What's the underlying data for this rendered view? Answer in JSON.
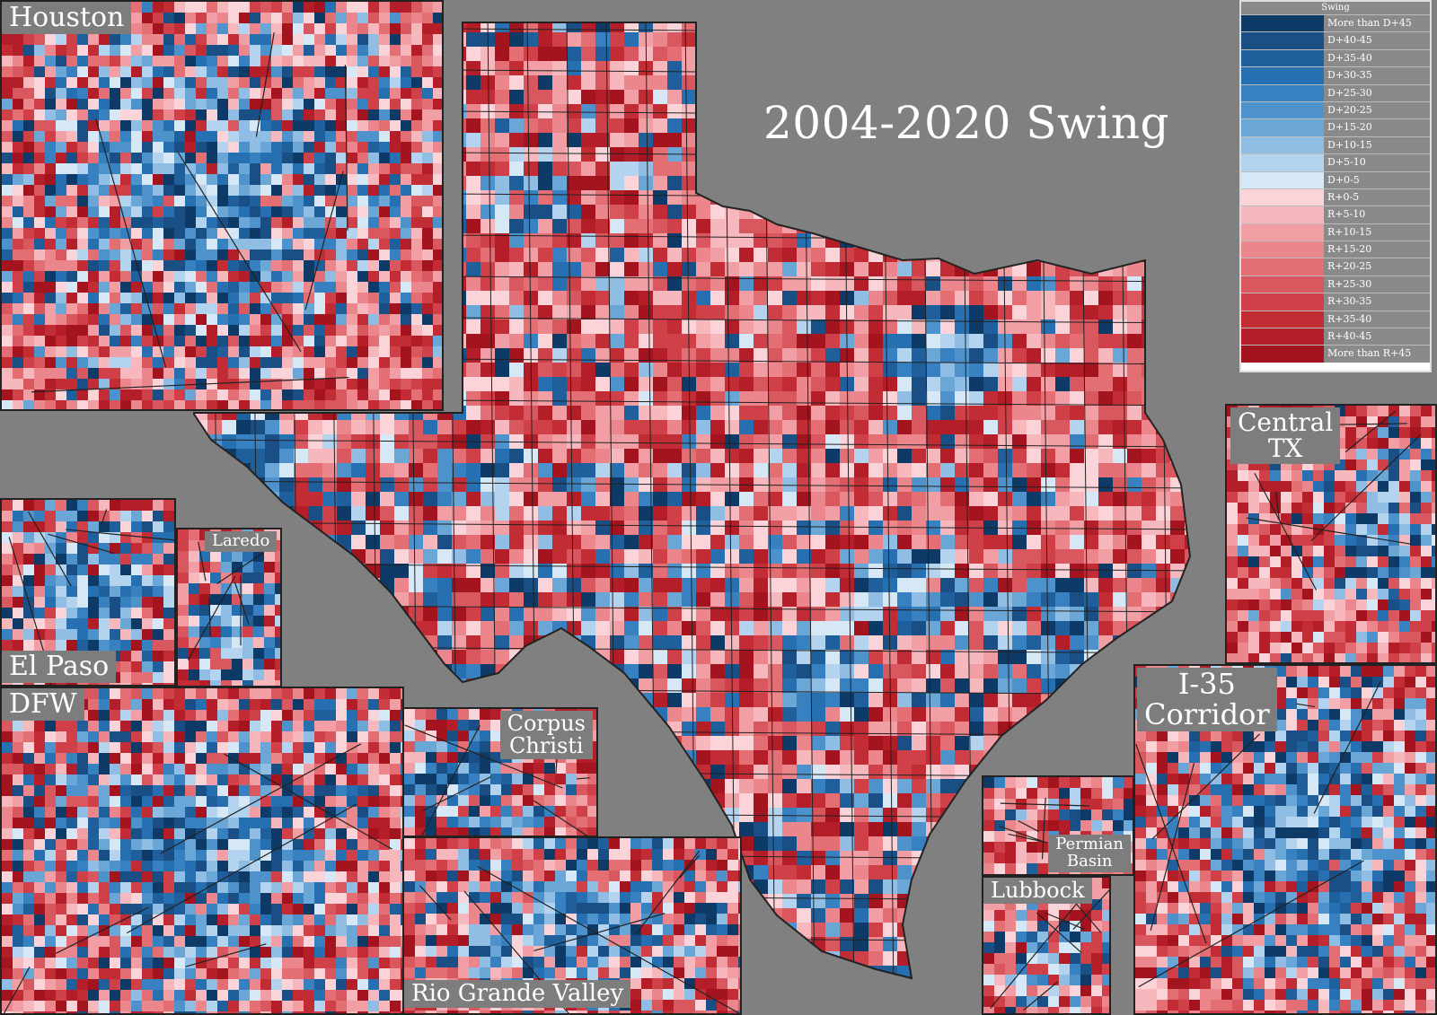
{
  "title": "2004-2020 Swing",
  "legend": {
    "title": "Swing",
    "items": [
      {
        "label": "More than D+45",
        "color": "#0d3a66"
      },
      {
        "label": "D+40-45",
        "color": "#1a4f86"
      },
      {
        "label": "D+35-40",
        "color": "#1f5f9c"
      },
      {
        "label": "D+30-35",
        "color": "#266fb0"
      },
      {
        "label": "D+25-30",
        "color": "#3881c0"
      },
      {
        "label": "D+20-25",
        "color": "#4d92cb"
      },
      {
        "label": "D+15-20",
        "color": "#6aa6d6"
      },
      {
        "label": "D+10-15",
        "color": "#8fbde3"
      },
      {
        "label": "D+5-10",
        "color": "#b3d3ee"
      },
      {
        "label": "D+0-5",
        "color": "#d6e7f6"
      },
      {
        "label": "R+0-5",
        "color": "#fad4d8"
      },
      {
        "label": "R+5-10",
        "color": "#f6b8bd"
      },
      {
        "label": "R+10-15",
        "color": "#f19ea4"
      },
      {
        "label": "R+15-20",
        "color": "#eb868c"
      },
      {
        "label": "R+20-25",
        "color": "#e36f75"
      },
      {
        "label": "R+25-30",
        "color": "#d95860"
      },
      {
        "label": "R+30-35",
        "color": "#cf4048"
      },
      {
        "label": "R+35-40",
        "color": "#c22c35"
      },
      {
        "label": "R+40-45",
        "color": "#b41e28"
      },
      {
        "label": "More than R+45",
        "color": "#a3141e"
      }
    ]
  },
  "insets": {
    "houston": "Houston",
    "central_tx": "Central\nTX",
    "el_paso": "El Paso",
    "laredo": "Laredo",
    "dfw": "DFW",
    "corpus_christi": "Corpus\nChristi",
    "rio_grande_valley": "Rio Grande Valley",
    "i35": "I-35\nCorridor",
    "permian_basin": "Permian\nBasin",
    "lubbock": "Lubbock"
  },
  "colors": {
    "background": "#808080",
    "border": "#222222"
  }
}
